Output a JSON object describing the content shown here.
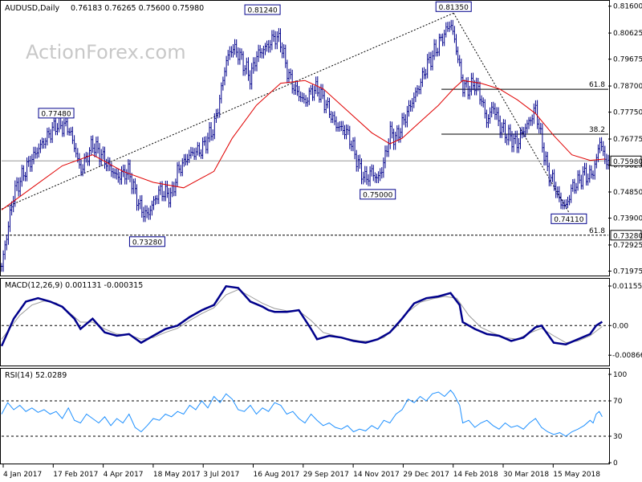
{
  "header": {
    "symbol": "AUDUSD,Daily",
    "ohlc": "0.76183 0.76265 0.75600 0.75980",
    "macd_label": "MACD(12,26,9) 0.001131 -0.000315",
    "rsi_label": "RSI(14) 52.0289"
  },
  "watermark": "ActionForex.com",
  "colors": {
    "candle": "#00008b",
    "ma": "#e00000",
    "macd": "#00008b",
    "signal": "#9a9a9a",
    "rsi": "#1e90ff",
    "label_border": "#00008b"
  },
  "chart_data": [
    {
      "type": "line",
      "panel": "price",
      "y_ticks": [
        "0.81600",
        "0.80625",
        "0.79675",
        "0.78700",
        "0.77750",
        "0.76775",
        "0.75825",
        "0.74850",
        "0.73900",
        "0.72925",
        "0.71975"
      ],
      "ylim": [
        0.7196,
        0.8165
      ],
      "x_tick_labels": [
        "4 Jan 2017",
        "17 Feb 2017",
        "4 Apr 2017",
        "18 May 2017",
        "3 Jul 2017",
        "16 Aug 2017",
        "29 Sep 2017",
        "14 Nov 2017",
        "29 Dec 2017",
        "14 Feb 2018",
        "30 Mar 2018",
        "15 May 2018"
      ],
      "current_price": "0.75980",
      "support_level": "0.73280",
      "annotations": [
        {
          "label": "0.77480",
          "t": 0.09,
          "value": 0.7748
        },
        {
          "label": "0.73280",
          "t": 0.24,
          "value": 0.7328
        },
        {
          "label": "0.81240",
          "t": 0.43,
          "value": 0.8124
        },
        {
          "label": "0.75000",
          "t": 0.62,
          "value": 0.75
        },
        {
          "label": "0.81350",
          "t": 0.745,
          "value": 0.8135
        },
        {
          "label": "0.74110",
          "t": 0.935,
          "value": 0.7411
        }
      ],
      "fib_levels": [
        {
          "label": "61.8",
          "value": 0.7858
        },
        {
          "label": "38.2",
          "value": 0.7695
        },
        {
          "label": "61.8",
          "value": 0.7328
        }
      ],
      "trend_lines": [
        {
          "from": {
            "t": 0.0,
            "value": 0.7423
          },
          "to": {
            "t": 0.745,
            "value": 0.8135
          }
        },
        {
          "from": {
            "t": 0.745,
            "value": 0.8135
          },
          "to": {
            "t": 0.935,
            "value": 0.7411
          }
        }
      ],
      "close_path": [
        [
          0.0,
          0.7215
        ],
        [
          0.02,
          0.748
        ],
        [
          0.04,
          0.757
        ],
        [
          0.06,
          0.764
        ],
        [
          0.08,
          0.77
        ],
        [
          0.09,
          0.773
        ],
        [
          0.11,
          0.772
        ],
        [
          0.12,
          0.765
        ],
        [
          0.13,
          0.756
        ],
        [
          0.15,
          0.766
        ],
        [
          0.17,
          0.76
        ],
        [
          0.19,
          0.754
        ],
        [
          0.21,
          0.756
        ],
        [
          0.22,
          0.748
        ],
        [
          0.23,
          0.742
        ],
        [
          0.24,
          0.74
        ],
        [
          0.26,
          0.749
        ],
        [
          0.28,
          0.747
        ],
        [
          0.29,
          0.756
        ],
        [
          0.31,
          0.762
        ],
        [
          0.33,
          0.764
        ],
        [
          0.35,
          0.772
        ],
        [
          0.36,
          0.783
        ],
        [
          0.37,
          0.796
        ],
        [
          0.38,
          0.801
        ],
        [
          0.39,
          0.799
        ],
        [
          0.41,
          0.79
        ],
        [
          0.42,
          0.798
        ],
        [
          0.44,
          0.802
        ],
        [
          0.45,
          0.805
        ],
        [
          0.46,
          0.803
        ],
        [
          0.47,
          0.793
        ],
        [
          0.48,
          0.787
        ],
        [
          0.5,
          0.781
        ],
        [
          0.51,
          0.785
        ],
        [
          0.52,
          0.786
        ],
        [
          0.54,
          0.778
        ],
        [
          0.55,
          0.773
        ],
        [
          0.57,
          0.77
        ],
        [
          0.58,
          0.764
        ],
        [
          0.59,
          0.757
        ],
        [
          0.6,
          0.753
        ],
        [
          0.61,
          0.756
        ],
        [
          0.62,
          0.753
        ],
        [
          0.63,
          0.759
        ],
        [
          0.64,
          0.77
        ],
        [
          0.65,
          0.768
        ],
        [
          0.67,
          0.778
        ],
        [
          0.69,
          0.788
        ],
        [
          0.7,
          0.794
        ],
        [
          0.71,
          0.798
        ],
        [
          0.72,
          0.802
        ],
        [
          0.73,
          0.806
        ],
        [
          0.74,
          0.81
        ],
        [
          0.75,
          0.8
        ],
        [
          0.76,
          0.787
        ],
        [
          0.77,
          0.786
        ],
        [
          0.78,
          0.788
        ],
        [
          0.79,
          0.783
        ],
        [
          0.8,
          0.774
        ],
        [
          0.81,
          0.78
        ],
        [
          0.82,
          0.773
        ],
        [
          0.83,
          0.77
        ],
        [
          0.84,
          0.768
        ],
        [
          0.85,
          0.766
        ],
        [
          0.86,
          0.771
        ],
        [
          0.87,
          0.774
        ],
        [
          0.88,
          0.779
        ],
        [
          0.89,
          0.767
        ],
        [
          0.9,
          0.756
        ],
        [
          0.91,
          0.752
        ],
        [
          0.92,
          0.745
        ],
        [
          0.93,
          0.743
        ],
        [
          0.94,
          0.75
        ],
        [
          0.95,
          0.752
        ],
        [
          0.96,
          0.755
        ],
        [
          0.97,
          0.754
        ],
        [
          0.98,
          0.759
        ],
        [
          0.985,
          0.768
        ],
        [
          0.995,
          0.7598
        ]
      ],
      "ma_path": [
        [
          0.0,
          0.742
        ],
        [
          0.05,
          0.75
        ],
        [
          0.1,
          0.758
        ],
        [
          0.15,
          0.762
        ],
        [
          0.2,
          0.756
        ],
        [
          0.25,
          0.752
        ],
        [
          0.3,
          0.75
        ],
        [
          0.35,
          0.756
        ],
        [
          0.38,
          0.768
        ],
        [
          0.42,
          0.78
        ],
        [
          0.46,
          0.788
        ],
        [
          0.5,
          0.789
        ],
        [
          0.53,
          0.786
        ],
        [
          0.57,
          0.778
        ],
        [
          0.61,
          0.77
        ],
        [
          0.64,
          0.766
        ],
        [
          0.66,
          0.768
        ],
        [
          0.69,
          0.774
        ],
        [
          0.72,
          0.78
        ],
        [
          0.745,
          0.786
        ],
        [
          0.76,
          0.789
        ],
        [
          0.79,
          0.788
        ],
        [
          0.82,
          0.786
        ],
        [
          0.85,
          0.782
        ],
        [
          0.88,
          0.777
        ],
        [
          0.91,
          0.769
        ],
        [
          0.94,
          0.762
        ],
        [
          0.97,
          0.76
        ],
        [
          0.995,
          0.7605
        ]
      ]
    },
    {
      "type": "line",
      "panel": "macd",
      "y_ticks": [
        "0.011554",
        "0.00",
        "-0.008664"
      ],
      "ylim": [
        -0.0105,
        0.0125
      ],
      "zero_line": 0.0,
      "series_macd": [
        [
          0.0,
          -0.006
        ],
        [
          0.02,
          0.002
        ],
        [
          0.04,
          0.007
        ],
        [
          0.06,
          0.008
        ],
        [
          0.08,
          0.007
        ],
        [
          0.1,
          0.0055
        ],
        [
          0.12,
          0.002
        ],
        [
          0.13,
          -0.001
        ],
        [
          0.15,
          0.002
        ],
        [
          0.17,
          -0.002
        ],
        [
          0.19,
          -0.003
        ],
        [
          0.21,
          -0.0025
        ],
        [
          0.23,
          -0.005
        ],
        [
          0.25,
          -0.003
        ],
        [
          0.27,
          -0.001
        ],
        [
          0.29,
          0.0
        ],
        [
          0.31,
          0.0025
        ],
        [
          0.33,
          0.0045
        ],
        [
          0.35,
          0.006
        ],
        [
          0.37,
          0.0115
        ],
        [
          0.39,
          0.011
        ],
        [
          0.41,
          0.007
        ],
        [
          0.43,
          0.0055
        ],
        [
          0.44,
          0.0045
        ],
        [
          0.45,
          0.004
        ],
        [
          0.47,
          0.004
        ],
        [
          0.49,
          0.0045
        ],
        [
          0.51,
          -0.001
        ],
        [
          0.52,
          -0.004
        ],
        [
          0.54,
          -0.003
        ],
        [
          0.56,
          -0.0035
        ],
        [
          0.58,
          -0.0045
        ],
        [
          0.6,
          -0.005
        ],
        [
          0.62,
          -0.004
        ],
        [
          0.64,
          -0.002
        ],
        [
          0.66,
          0.002
        ],
        [
          0.68,
          0.0065
        ],
        [
          0.7,
          0.008
        ],
        [
          0.72,
          0.0085
        ],
        [
          0.74,
          0.0095
        ],
        [
          0.755,
          0.006
        ],
        [
          0.76,
          0.001
        ],
        [
          0.78,
          -0.001
        ],
        [
          0.8,
          -0.0025
        ],
        [
          0.82,
          -0.003
        ],
        [
          0.84,
          -0.0045
        ],
        [
          0.86,
          -0.0035
        ],
        [
          0.88,
          -0.0005
        ],
        [
          0.89,
          0.0
        ],
        [
          0.91,
          -0.005
        ],
        [
          0.93,
          -0.0055
        ],
        [
          0.95,
          -0.004
        ],
        [
          0.97,
          -0.0025
        ],
        [
          0.98,
          0.0
        ],
        [
          0.99,
          0.0011
        ]
      ],
      "series_signal": [
        [
          0.0,
          -0.004
        ],
        [
          0.03,
          0.003
        ],
        [
          0.05,
          0.006
        ],
        [
          0.07,
          0.0072
        ],
        [
          0.09,
          0.0066
        ],
        [
          0.11,
          0.004
        ],
        [
          0.13,
          0.001
        ],
        [
          0.15,
          0.001
        ],
        [
          0.17,
          -0.001
        ],
        [
          0.19,
          -0.0025
        ],
        [
          0.21,
          -0.0027
        ],
        [
          0.23,
          -0.004
        ],
        [
          0.25,
          -0.0035
        ],
        [
          0.27,
          -0.002
        ],
        [
          0.29,
          -0.0008
        ],
        [
          0.31,
          0.0015
        ],
        [
          0.33,
          0.0035
        ],
        [
          0.35,
          0.0052
        ],
        [
          0.37,
          0.009
        ],
        [
          0.39,
          0.0105
        ],
        [
          0.41,
          0.0085
        ],
        [
          0.43,
          0.0065
        ],
        [
          0.45,
          0.005
        ],
        [
          0.47,
          0.0043
        ],
        [
          0.49,
          0.0043
        ],
        [
          0.51,
          0.0015
        ],
        [
          0.53,
          -0.002
        ],
        [
          0.55,
          -0.003
        ],
        [
          0.57,
          -0.0038
        ],
        [
          0.59,
          -0.0045
        ],
        [
          0.61,
          -0.0046
        ],
        [
          0.63,
          -0.0035
        ],
        [
          0.65,
          -0.0005
        ],
        [
          0.67,
          0.004
        ],
        [
          0.69,
          0.0068
        ],
        [
          0.71,
          0.0078
        ],
        [
          0.73,
          0.0085
        ],
        [
          0.75,
          0.008
        ],
        [
          0.77,
          0.003
        ],
        [
          0.79,
          -0.0005
        ],
        [
          0.81,
          -0.0022
        ],
        [
          0.83,
          -0.0035
        ],
        [
          0.85,
          -0.004
        ],
        [
          0.87,
          -0.0022
        ],
        [
          0.89,
          -0.0008
        ],
        [
          0.91,
          -0.003
        ],
        [
          0.93,
          -0.005
        ],
        [
          0.95,
          -0.0045
        ],
        [
          0.97,
          -0.003
        ],
        [
          0.99,
          -0.0003
        ]
      ]
    },
    {
      "type": "line",
      "panel": "rsi",
      "y_ticks": [
        "100",
        "70",
        "30",
        "0"
      ],
      "ylim": [
        0,
        100
      ],
      "levels": [
        70,
        30
      ],
      "series": [
        [
          0.0,
          55
        ],
        [
          0.01,
          68
        ],
        [
          0.02,
          60
        ],
        [
          0.03,
          65
        ],
        [
          0.04,
          58
        ],
        [
          0.05,
          62
        ],
        [
          0.06,
          57
        ],
        [
          0.07,
          60
        ],
        [
          0.08,
          55
        ],
        [
          0.09,
          58
        ],
        [
          0.1,
          50
        ],
        [
          0.11,
          62
        ],
        [
          0.12,
          48
        ],
        [
          0.13,
          45
        ],
        [
          0.14,
          55
        ],
        [
          0.15,
          50
        ],
        [
          0.16,
          45
        ],
        [
          0.17,
          52
        ],
        [
          0.18,
          42
        ],
        [
          0.19,
          50
        ],
        [
          0.2,
          45
        ],
        [
          0.21,
          55
        ],
        [
          0.22,
          40
        ],
        [
          0.23,
          35
        ],
        [
          0.24,
          42
        ],
        [
          0.25,
          50
        ],
        [
          0.26,
          48
        ],
        [
          0.27,
          55
        ],
        [
          0.28,
          52
        ],
        [
          0.29,
          58
        ],
        [
          0.3,
          55
        ],
        [
          0.31,
          65
        ],
        [
          0.32,
          60
        ],
        [
          0.33,
          70
        ],
        [
          0.34,
          62
        ],
        [
          0.35,
          75
        ],
        [
          0.36,
          68
        ],
        [
          0.37,
          78
        ],
        [
          0.38,
          72
        ],
        [
          0.39,
          60
        ],
        [
          0.4,
          58
        ],
        [
          0.41,
          65
        ],
        [
          0.42,
          55
        ],
        [
          0.43,
          62
        ],
        [
          0.44,
          58
        ],
        [
          0.45,
          68
        ],
        [
          0.46,
          65
        ],
        [
          0.47,
          55
        ],
        [
          0.48,
          58
        ],
        [
          0.49,
          50
        ],
        [
          0.5,
          45
        ],
        [
          0.51,
          55
        ],
        [
          0.52,
          48
        ],
        [
          0.53,
          42
        ],
        [
          0.54,
          45
        ],
        [
          0.55,
          40
        ],
        [
          0.56,
          38
        ],
        [
          0.57,
          42
        ],
        [
          0.58,
          35
        ],
        [
          0.59,
          38
        ],
        [
          0.6,
          36
        ],
        [
          0.61,
          42
        ],
        [
          0.62,
          38
        ],
        [
          0.63,
          48
        ],
        [
          0.64,
          45
        ],
        [
          0.65,
          55
        ],
        [
          0.66,
          60
        ],
        [
          0.67,
          72
        ],
        [
          0.68,
          68
        ],
        [
          0.69,
          75
        ],
        [
          0.7,
          70
        ],
        [
          0.71,
          78
        ],
        [
          0.72,
          80
        ],
        [
          0.73,
          75
        ],
        [
          0.74,
          82
        ],
        [
          0.745,
          78
        ],
        [
          0.755,
          65
        ],
        [
          0.76,
          45
        ],
        [
          0.77,
          48
        ],
        [
          0.78,
          40
        ],
        [
          0.79,
          45
        ],
        [
          0.8,
          48
        ],
        [
          0.81,
          42
        ],
        [
          0.82,
          38
        ],
        [
          0.83,
          45
        ],
        [
          0.84,
          40
        ],
        [
          0.85,
          42
        ],
        [
          0.86,
          38
        ],
        [
          0.87,
          45
        ],
        [
          0.88,
          50
        ],
        [
          0.89,
          40
        ],
        [
          0.9,
          35
        ],
        [
          0.91,
          32
        ],
        [
          0.92,
          34
        ],
        [
          0.93,
          30
        ],
        [
          0.94,
          35
        ],
        [
          0.95,
          38
        ],
        [
          0.96,
          42
        ],
        [
          0.97,
          48
        ],
        [
          0.975,
          45
        ],
        [
          0.98,
          55
        ],
        [
          0.985,
          58
        ],
        [
          0.99,
          52
        ]
      ]
    }
  ]
}
